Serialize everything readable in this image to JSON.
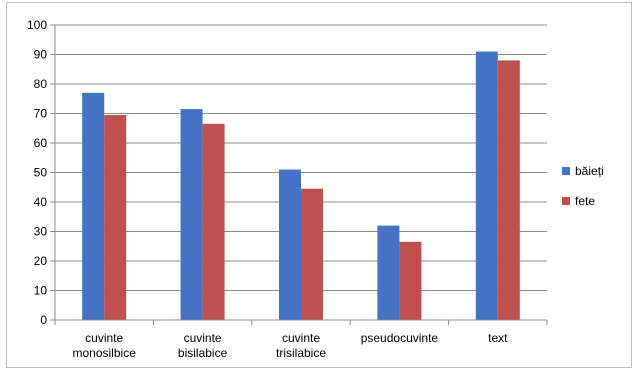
{
  "chart_data": {
    "type": "bar",
    "categories": [
      [
        "cuvinte",
        "monosilbice"
      ],
      [
        "cuvinte",
        "bisilabice"
      ],
      [
        "cuvinte",
        "trisilabice"
      ],
      [
        "pseudocuvinte"
      ],
      [
        "text"
      ]
    ],
    "series": [
      {
        "name": "băieți",
        "color": "#4472c4",
        "values": [
          77,
          71.5,
          51,
          32,
          91
        ]
      },
      {
        "name": "fete",
        "color": "#c0504d",
        "values": [
          69.5,
          66.5,
          44.5,
          26.5,
          88
        ]
      }
    ],
    "ylim": [
      0,
      100
    ],
    "yticks": [
      "0",
      "10",
      "20",
      "30",
      "40",
      "50",
      "60",
      "70",
      "80",
      "90",
      "100"
    ],
    "grid": true,
    "legend_position": "right",
    "title": "",
    "xlabel": "",
    "ylabel": ""
  }
}
